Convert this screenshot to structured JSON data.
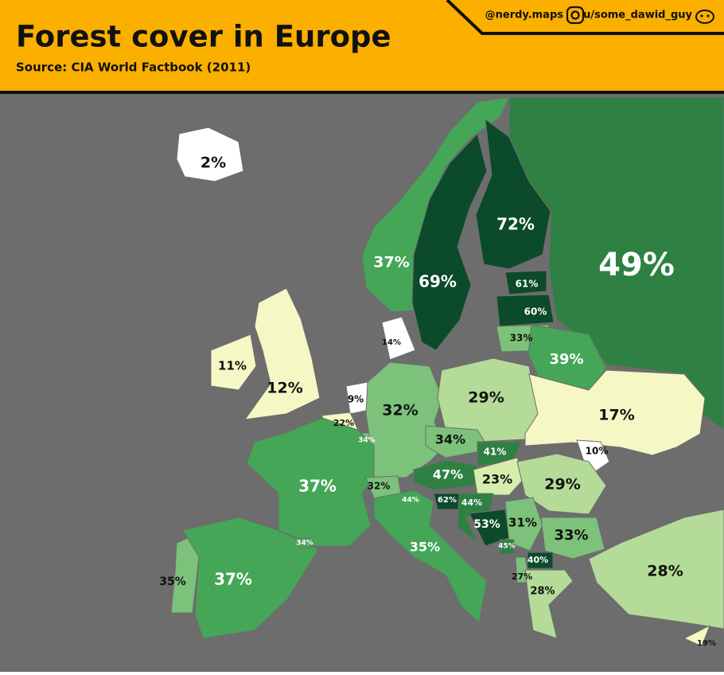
{
  "header": {
    "title": "Forest cover in Europe",
    "source": "Source:  CIA World Factbook (2011)",
    "instagram": "@nerdy.maps",
    "reddit": "u/some_dawid_guy"
  },
  "regions": [
    {
      "label": "2%"
    },
    {
      "label": "37%"
    },
    {
      "label": "69%"
    },
    {
      "label": "72%"
    },
    {
      "label": "49%"
    },
    {
      "label": "61%"
    },
    {
      "label": "60%"
    },
    {
      "label": "33%"
    },
    {
      "label": "39%"
    },
    {
      "label": "11%"
    },
    {
      "label": "12%"
    },
    {
      "label": "14%"
    },
    {
      "label": "9%"
    },
    {
      "label": "22%"
    },
    {
      "label": "34%"
    },
    {
      "label": "32%"
    },
    {
      "label": "29%"
    },
    {
      "label": "17%"
    },
    {
      "label": "10%"
    },
    {
      "label": "34%"
    },
    {
      "label": "41%"
    },
    {
      "label": "47%"
    },
    {
      "label": "23%"
    },
    {
      "label": "29%"
    },
    {
      "label": "37%"
    },
    {
      "label": "32%"
    },
    {
      "label": "44%"
    },
    {
      "label": "35%"
    },
    {
      "label": "62%"
    },
    {
      "label": "44%"
    },
    {
      "label": "53%"
    },
    {
      "label": "31%"
    },
    {
      "label": "45%"
    },
    {
      "label": "33%"
    },
    {
      "label": "40%"
    },
    {
      "label": "27%"
    },
    {
      "label": "28%"
    },
    {
      "label": "28%"
    },
    {
      "label": "19%"
    },
    {
      "label": "35%"
    },
    {
      "label": "37%"
    },
    {
      "label": "34%"
    }
  ]
}
